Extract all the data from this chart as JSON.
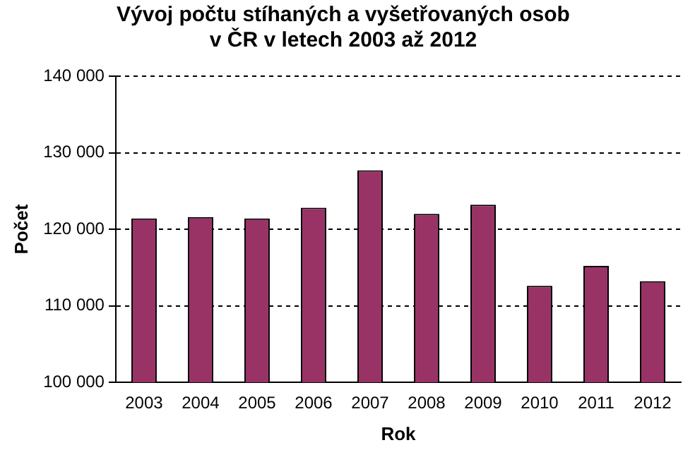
{
  "chart_data": {
    "type": "bar",
    "title": [
      "Vývoj počtu stíhaných a vyšetřovaných osob",
      "v ČR v letech 2003 až 2012"
    ],
    "xlabel": "Rok",
    "ylabel": "Počet",
    "categories": [
      "2003",
      "2004",
      "2005",
      "2006",
      "2007",
      "2008",
      "2009",
      "2010",
      "2011",
      "2012"
    ],
    "values": [
      121400,
      121600,
      121400,
      122800,
      127700,
      122000,
      123200,
      112600,
      115200,
      113200
    ],
    "color": "#993366",
    "ylim": [
      100000,
      140000
    ],
    "yticks": [
      {
        "value": 100000,
        "label": "100 000"
      },
      {
        "value": 110000,
        "label": "110 000"
      },
      {
        "value": 120000,
        "label": "120 000"
      },
      {
        "value": 130000,
        "label": "130 000"
      },
      {
        "value": 140000,
        "label": "140 000"
      }
    ],
    "grid": "y"
  }
}
